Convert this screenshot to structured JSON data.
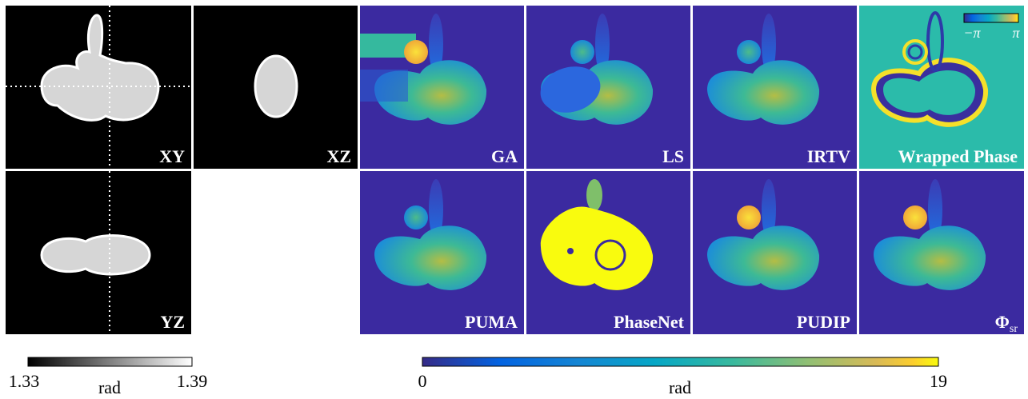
{
  "panels": {
    "xy": "XY",
    "xz": "XZ",
    "yz": "YZ",
    "ga": "GA",
    "ls": "LS",
    "irtv": "IRTV",
    "wrapped": "Wrapped Phase",
    "puma": "PUMA",
    "phasenet": "PhaseNet",
    "pudip": "PUDIP",
    "phi_sr": {
      "symbol": "Φ",
      "subscript": "sr"
    }
  },
  "inset_colorbar": {
    "min": "−π",
    "max": "π"
  },
  "gray_colorbar": {
    "min": "1.33",
    "max": "1.39",
    "unit": "rad"
  },
  "phase_colorbar": {
    "min": "0",
    "max": "19",
    "unit": "rad"
  }
}
